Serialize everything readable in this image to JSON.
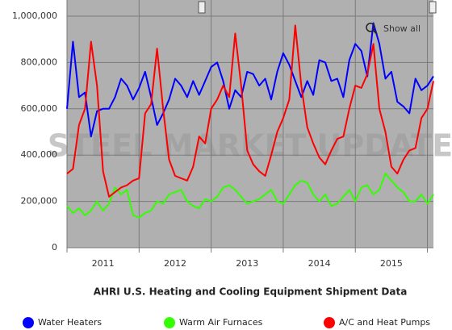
{
  "chart_data": {
    "type": "line",
    "title": "AHRI U.S. Heating and Cooling Equipment Shipment Data",
    "watermark": "STEEL MARKET UPDATE",
    "button": "Show all",
    "categories": [
      null,
      null,
      null,
      null,
      null,
      null,
      "2011",
      null,
      null,
      null,
      null,
      null,
      null,
      null,
      null,
      null,
      null,
      null,
      "2012",
      null,
      null,
      null,
      null,
      null,
      null,
      null,
      null,
      null,
      null,
      null,
      "2013",
      null,
      null,
      null,
      null,
      null,
      null,
      null,
      null,
      null,
      null,
      null,
      "2014",
      null,
      null,
      null,
      null,
      null,
      null,
      null,
      null,
      null,
      null,
      null,
      "2015",
      null,
      null,
      null,
      null,
      null,
      null,
      null
    ],
    "ylim": [
      0,
      1000000
    ],
    "yticks": [
      0,
      {
        "value": 200000,
        "label": "200,000"
      },
      {
        "value": 400000,
        "label": "400,000"
      },
      {
        "value": 600000,
        "label": "600,000"
      },
      {
        "value": 800000,
        "label": "800,000"
      },
      {
        "value": 1000000,
        "label": "1,000,000"
      }
    ],
    "grid": true,
    "series": [
      {
        "name": "Water Heaters",
        "color": "#0000ff",
        "values": [
          600000,
          890000,
          650000,
          670000,
          480000,
          590000,
          600000,
          600000,
          650000,
          730000,
          700000,
          640000,
          690000,
          760000,
          650000,
          530000,
          580000,
          640000,
          730000,
          700000,
          650000,
          720000,
          660000,
          720000,
          780000,
          800000,
          720000,
          600000,
          680000,
          650000,
          760000,
          750000,
          700000,
          730000,
          640000,
          760000,
          840000,
          790000,
          720000,
          650000,
          720000,
          660000,
          810000,
          800000,
          720000,
          730000,
          650000,
          810000,
          880000,
          850000,
          740000,
          970000,
          880000,
          730000,
          760000,
          630000,
          610000,
          580000,
          730000,
          680000,
          700000,
          740000
        ]
      },
      {
        "name": "Warm Air Furnaces",
        "color": "#33ff00",
        "values": [
          180000,
          150000,
          170000,
          140000,
          160000,
          200000,
          160000,
          190000,
          260000,
          230000,
          250000,
          140000,
          130000,
          150000,
          160000,
          200000,
          190000,
          230000,
          240000,
          250000,
          200000,
          180000,
          170000,
          210000,
          200000,
          220000,
          260000,
          270000,
          250000,
          220000,
          190000,
          200000,
          210000,
          230000,
          250000,
          200000,
          190000,
          230000,
          270000,
          290000,
          280000,
          230000,
          200000,
          230000,
          180000,
          190000,
          220000,
          250000,
          200000,
          260000,
          270000,
          230000,
          250000,
          320000,
          290000,
          260000,
          240000,
          200000,
          200000,
          230000,
          190000,
          230000
        ]
      },
      {
        "name": "A/C and Heat Pumps",
        "color": "#ff0000",
        "values": [
          320000,
          340000,
          530000,
          600000,
          890000,
          700000,
          330000,
          220000,
          240000,
          260000,
          270000,
          290000,
          300000,
          580000,
          620000,
          860000,
          600000,
          380000,
          310000,
          300000,
          290000,
          350000,
          480000,
          450000,
          600000,
          640000,
          700000,
          650000,
          925000,
          700000,
          420000,
          360000,
          330000,
          310000,
          400000,
          500000,
          560000,
          640000,
          960000,
          700000,
          520000,
          450000,
          390000,
          360000,
          420000,
          470000,
          480000,
          600000,
          700000,
          690000,
          750000,
          880000,
          600000,
          500000,
          350000,
          320000,
          380000,
          420000,
          430000,
          560000,
          600000,
          720000
        ]
      }
    ]
  }
}
